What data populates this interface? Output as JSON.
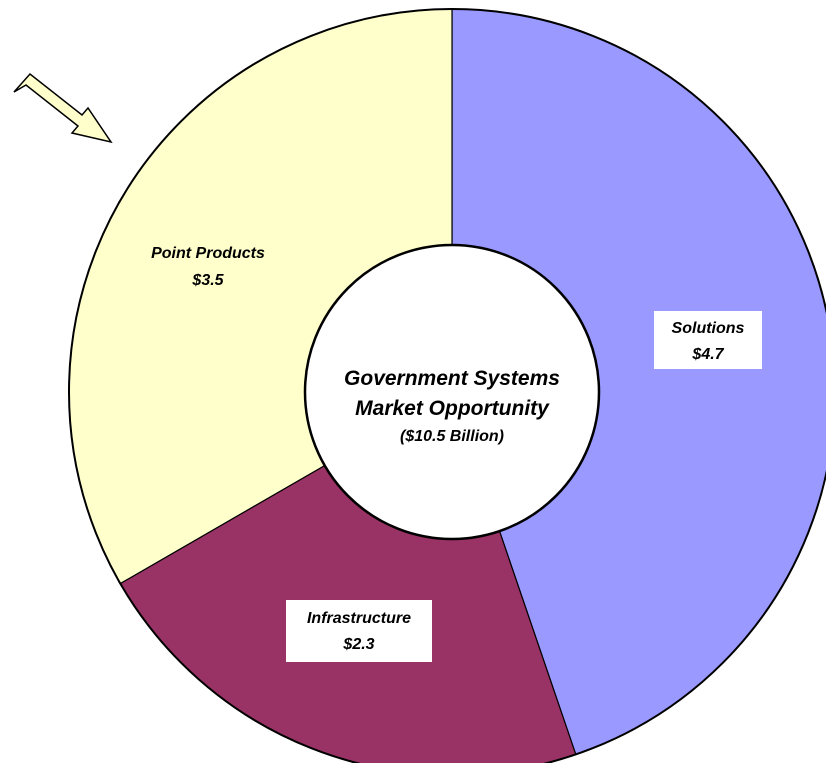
{
  "chart_data": {
    "type": "pie",
    "style": "donut",
    "center_title_line1": "Government Systems",
    "center_title_line2": "Market Opportunity",
    "center_subtitle": "($10.5 Billion)",
    "slices": [
      {
        "label": "Solutions",
        "value_label": "$4.7",
        "value": 4.7,
        "color": "#9999ff"
      },
      {
        "label": "Infrastructure",
        "value_label": "$2.3",
        "value": 2.3,
        "color": "#993366"
      },
      {
        "label": "Point Products",
        "value_label": "$3.5",
        "value": 3.5,
        "color": "#ffffcc"
      }
    ],
    "highlight_arrow_target": "Point Products",
    "arrow_color": "#ffffcc"
  }
}
